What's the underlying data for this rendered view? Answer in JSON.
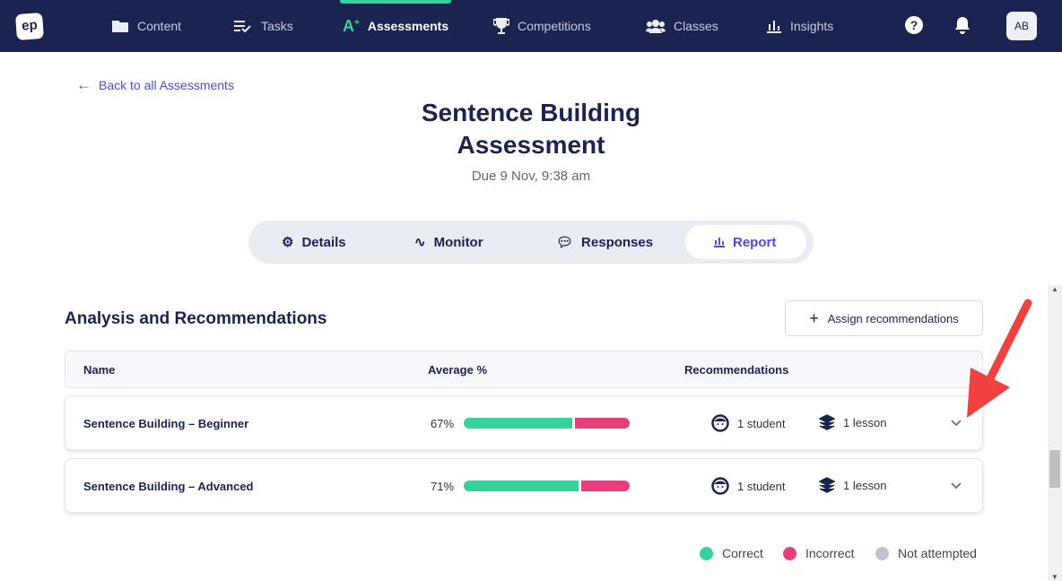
{
  "nav": {
    "logo": "ep",
    "items": [
      {
        "label": "Content"
      },
      {
        "label": "Tasks"
      },
      {
        "label": "Assessments"
      },
      {
        "label": "Competitions"
      },
      {
        "label": "Classes"
      },
      {
        "label": "Insights"
      }
    ],
    "avatar": "AB"
  },
  "back_link": "Back to all Assessments",
  "title": "Sentence Building Assessment",
  "due": "Due 9 Nov, 9:38 am",
  "tabs": [
    {
      "label": "Details"
    },
    {
      "label": "Monitor"
    },
    {
      "label": "Responses"
    },
    {
      "label": "Report"
    }
  ],
  "section_title": "Analysis and Recommendations",
  "assign_button": "Assign recommendations",
  "table": {
    "headers": [
      "Name",
      "Average %",
      "Recommendations"
    ],
    "rows": [
      {
        "name": "Sentence Building – Beginner",
        "average": "67%",
        "correct_fraction": 0.67,
        "students": "1 student",
        "lessons": "1 lesson"
      },
      {
        "name": "Sentence Building – Advanced",
        "average": "71%",
        "correct_fraction": 0.71,
        "students": "1 student",
        "lessons": "1 lesson"
      }
    ]
  },
  "legend": [
    {
      "label": "Correct",
      "color": "#34d399"
    },
    {
      "label": "Incorrect",
      "color": "#e83e7c"
    },
    {
      "label": "Not attempted",
      "color": "#c0c4d0"
    }
  ]
}
